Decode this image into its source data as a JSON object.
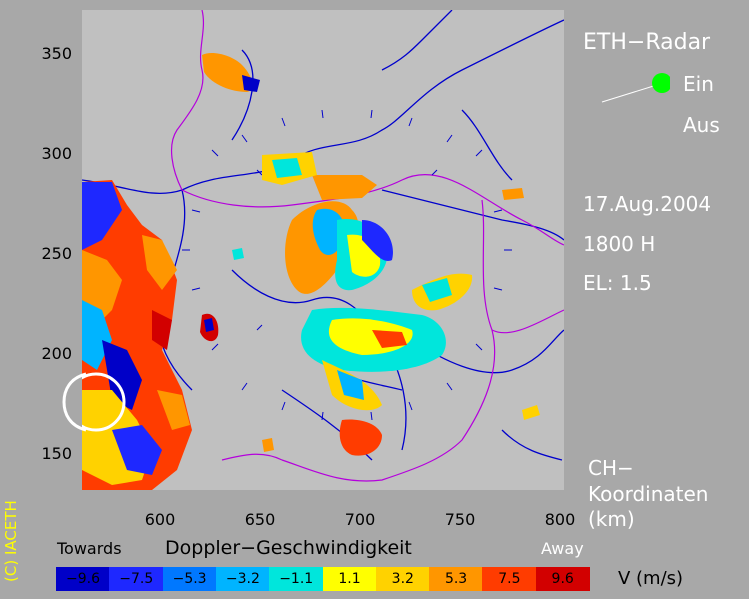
{
  "header": {
    "radar_title": "ETH−Radar",
    "status_on": "Ein",
    "status_off": "Aus",
    "date": "17.Aug.2004",
    "time": "1800 H",
    "elevation": "EL: 1.5",
    "coord_line1": "CH−",
    "coord_line2": "Koordinaten",
    "coord_unit": "(km)",
    "status_on_color": "#00ff00"
  },
  "axes": {
    "y_ticks": [
      "350",
      "300",
      "250",
      "200",
      "150"
    ],
    "x_ticks": [
      "600",
      "650",
      "700",
      "750",
      "800"
    ],
    "x_range_km": [
      562,
      802
    ],
    "y_range_km": [
      132,
      372
    ]
  },
  "legend": {
    "title": "Doppler−Geschwindigkeit",
    "towards_label": "Towards",
    "away_label": "Away",
    "unit_label": "V  (m/s)",
    "bins": [
      {
        "label": "−9.6",
        "color": "#0000c8",
        "text_color": "#000000"
      },
      {
        "label": "−7.5",
        "color": "#1e28ff",
        "text_color": "#000000"
      },
      {
        "label": "−5.3",
        "color": "#0078ff",
        "text_color": "#000000"
      },
      {
        "label": "−3.2",
        "color": "#00b4ff",
        "text_color": "#000000"
      },
      {
        "label": "−1.1",
        "color": "#00e6dc",
        "text_color": "#000000"
      },
      {
        "label": "1.1",
        "color": "#ffff00",
        "text_color": "#000000"
      },
      {
        "label": "3.2",
        "color": "#ffd200",
        "text_color": "#000000"
      },
      {
        "label": "5.3",
        "color": "#ff9600",
        "text_color": "#000000"
      },
      {
        "label": "7.5",
        "color": "#ff3c00",
        "text_color": "#000000"
      },
      {
        "label": "9.6",
        "color": "#d20000",
        "text_color": "#000000"
      }
    ]
  },
  "copyright": "(C) IACETH"
}
